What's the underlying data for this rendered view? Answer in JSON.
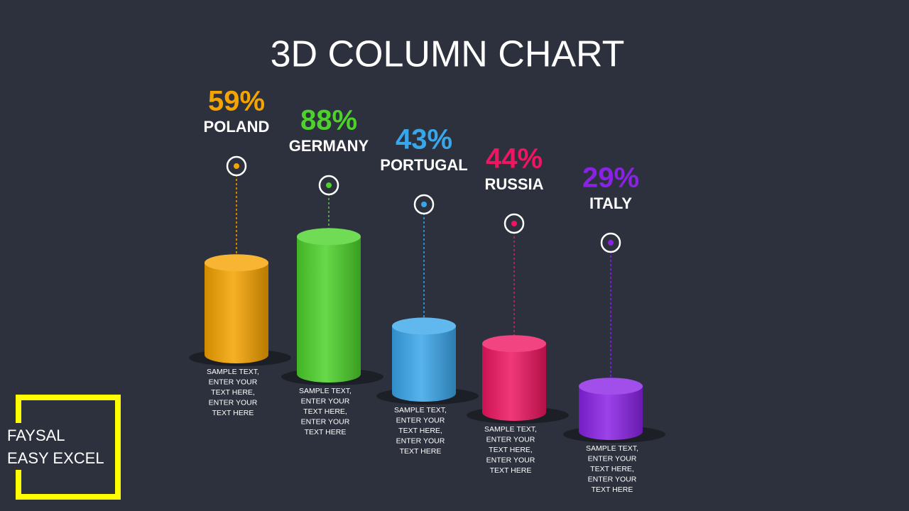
{
  "chart_data": {
    "type": "bar",
    "title": "3D COLUMN CHART",
    "categories": [
      "POLAND",
      "GERMANY",
      "PORTUGAL",
      "RUSSIA",
      "ITALY"
    ],
    "values": [
      59,
      88,
      43,
      44,
      29
    ],
    "value_labels": [
      "59%",
      "88%",
      "43%",
      "44%",
      "29%"
    ],
    "colors": [
      "#f5a300",
      "#4cd22a",
      "#3aa6ea",
      "#ef1560",
      "#8a22e6"
    ],
    "notes": [
      [
        "SAMPLE TEXT,",
        "ENTER YOUR",
        "TEXT HERE,",
        "ENTER YOUR",
        "TEXT HERE"
      ],
      [
        "SAMPLE TEXT,",
        "ENTER YOUR",
        "TEXT HERE,",
        "ENTER YOUR",
        "TEXT HERE"
      ],
      [
        "SAMPLE TEXT,",
        "ENTER YOUR",
        "TEXT HERE,",
        "ENTER YOUR",
        "TEXT HERE"
      ],
      [
        "SAMPLE TEXT,",
        "ENTER YOUR",
        "TEXT HERE,",
        "ENTER YOUR",
        "TEXT HERE"
      ],
      [
        "SAMPLE TEXT,",
        "ENTER YOUR",
        "TEXT HERE,",
        "ENTER YOUR",
        "TEXT HERE"
      ]
    ]
  },
  "branding": [
    "FAYSAL",
    "EASY EXCEL"
  ]
}
